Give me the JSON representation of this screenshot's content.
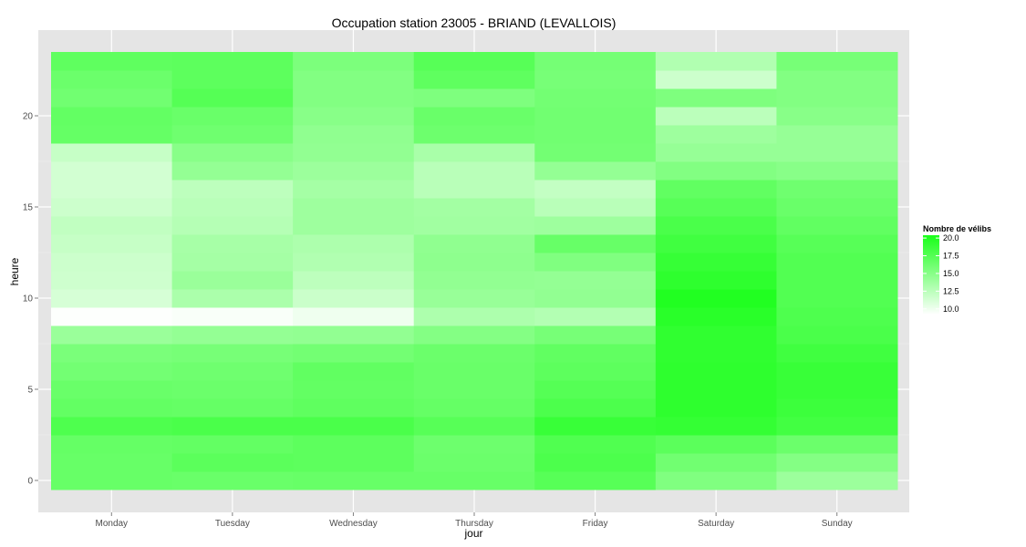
{
  "chart_data": {
    "type": "heatmap",
    "title": "Occupation station 23005 - BRIAND (LEVALLOIS)",
    "xlabel": "jour",
    "ylabel": "heure",
    "x_categories": [
      "Monday",
      "Tuesday",
      "Wednesday",
      "Thursday",
      "Friday",
      "Saturday",
      "Sunday"
    ],
    "y_hours": [
      0,
      1,
      2,
      3,
      4,
      5,
      6,
      7,
      8,
      9,
      10,
      11,
      12,
      13,
      14,
      15,
      16,
      17,
      18,
      19,
      20,
      21,
      22,
      23
    ],
    "y_ticks": [
      0,
      5,
      10,
      15,
      20
    ],
    "y_range": [
      -0.5,
      23.5
    ],
    "grid": true,
    "legend": {
      "title": "Nombre de vélibs",
      "position": "right",
      "breaks": [
        20.0,
        17.5,
        15.0,
        12.5,
        10.0
      ],
      "break_labels": [
        "20.0",
        "17.5",
        "15.0",
        "12.5",
        "10.0"
      ],
      "limits": [
        9.2,
        20.4
      ],
      "low_color": "#ffffff",
      "high_color": "#19ff19"
    },
    "values": [
      [
        16.6,
        16.5,
        16.6,
        16.6,
        17.4,
        15.4,
        14.0
      ],
      [
        16.6,
        17.2,
        17.1,
        16.4,
        17.9,
        16.1,
        15.2
      ],
      [
        16.7,
        16.8,
        17.1,
        16.3,
        17.7,
        17.2,
        16.4
      ],
      [
        17.8,
        18.0,
        18.0,
        17.4,
        18.9,
        19.1,
        18.4
      ],
      [
        16.8,
        16.7,
        17.0,
        16.7,
        17.9,
        19.4,
        18.7
      ],
      [
        16.5,
        16.4,
        16.8,
        16.5,
        17.5,
        19.4,
        18.9
      ],
      [
        16.0,
        16.2,
        16.9,
        16.5,
        17.1,
        19.4,
        18.9
      ],
      [
        15.7,
        15.8,
        16.0,
        16.4,
        16.9,
        19.3,
        18.5
      ],
      [
        14.1,
        14.4,
        14.5,
        15.2,
        15.8,
        19.3,
        18.0
      ],
      [
        9.3,
        9.5,
        10.0,
        13.2,
        12.9,
        19.6,
        17.8
      ],
      [
        11.2,
        13.3,
        11.8,
        14.2,
        14.5,
        20.0,
        17.6
      ],
      [
        11.6,
        14.1,
        12.4,
        14.5,
        14.4,
        19.4,
        17.6
      ],
      [
        11.7,
        13.6,
        13.0,
        14.7,
        15.4,
        19.0,
        17.6
      ],
      [
        12.0,
        13.5,
        13.2,
        14.6,
        16.6,
        18.5,
        17.4
      ],
      [
        12.2,
        12.8,
        13.9,
        13.8,
        13.9,
        18.0,
        16.9
      ],
      [
        11.7,
        12.6,
        13.9,
        13.7,
        12.6,
        17.4,
        16.5
      ],
      [
        11.4,
        12.4,
        13.6,
        12.6,
        12.1,
        16.9,
        16.2
      ],
      [
        11.4,
        14.4,
        14.0,
        12.6,
        14.4,
        15.3,
        15.0
      ],
      [
        12.0,
        15.0,
        14.5,
        13.4,
        16.0,
        14.3,
        14.3
      ],
      [
        16.7,
        16.2,
        14.6,
        16.3,
        16.1,
        13.9,
        14.3
      ],
      [
        16.8,
        16.5,
        15.0,
        16.5,
        16.1,
        12.5,
        15.0
      ],
      [
        16.1,
        17.5,
        15.3,
        15.5,
        16.0,
        15.5,
        15.3
      ],
      [
        16.4,
        17.1,
        15.3,
        17.0,
        15.8,
        11.7,
        15.3
      ],
      [
        17.0,
        17.1,
        15.6,
        17.4,
        15.9,
        13.0,
        15.8
      ]
    ]
  }
}
